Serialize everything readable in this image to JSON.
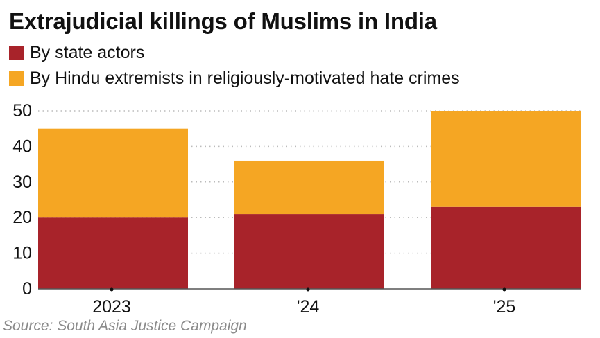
{
  "chart_data": {
    "type": "bar",
    "stacked": true,
    "title": "Extrajudicial killings of Muslims in India",
    "categories": [
      "2023",
      "'24",
      "'25"
    ],
    "series": [
      {
        "name": "By state actors",
        "color": "#a8232a",
        "values": [
          20,
          21,
          23
        ]
      },
      {
        "name": "By Hindu extremists in religiously-motivated hate crimes",
        "color": "#f5a623",
        "values": [
          25,
          15,
          27
        ]
      }
    ],
    "y_ticks": [
      "0",
      "10",
      "20",
      "30",
      "40",
      "50"
    ],
    "ylim": [
      0,
      50
    ],
    "xlabel": "",
    "ylabel": "",
    "grid": "dotted horizontal",
    "legend_position": "top-left",
    "source": "Source: South Asia Justice Campaign"
  }
}
